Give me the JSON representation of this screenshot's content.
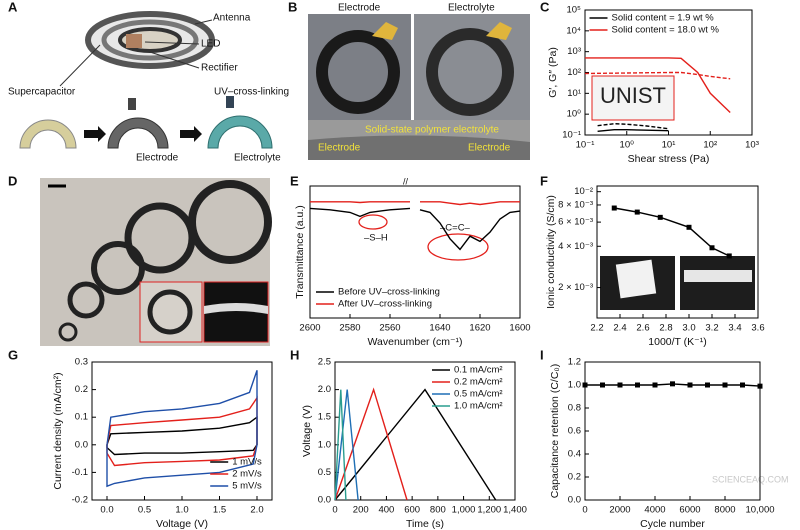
{
  "panel_labels": [
    "A",
    "B",
    "C",
    "D",
    "E",
    "F",
    "G",
    "H",
    "I"
  ],
  "panel_a": {
    "labels": [
      "Antenna",
      "LED",
      "Rectifier",
      "Supercapacitor",
      "UV–cross-linking",
      "Electrode",
      "Electrolyte"
    ]
  },
  "panel_b": {
    "labels": [
      "Electrode",
      "Electrolyte",
      "Solid-state polymer electrolyte",
      "Electrode",
      "Electrode"
    ]
  },
  "watermark": "SCIENCEAQ.COM",
  "chart_data": [
    {
      "type": "line",
      "xlabel": "Shear stress (Pa)",
      "ylabel": "G′, G″ (Pa)",
      "xscale": "log",
      "yscale": "log",
      "xlim": [
        0.1,
        1000
      ],
      "xticks": [
        {
          "value": 0.1,
          "label": "10⁻¹"
        },
        {
          "value": 1,
          "label": "10⁰"
        },
        {
          "value": 10,
          "label": "10¹"
        },
        {
          "value": 100,
          "label": "10²"
        },
        {
          "value": 1000,
          "label": "10³"
        }
      ],
      "ylim": [
        0.1,
        100000
      ],
      "yticks": [
        {
          "value": 0.1,
          "label": "10⁻¹"
        },
        {
          "value": 1,
          "label": "10⁰"
        },
        {
          "value": 10,
          "label": "10¹"
        },
        {
          "value": 100,
          "label": "10²"
        },
        {
          "value": 1000,
          "label": "10³"
        },
        {
          "value": 10000,
          "label": "10⁴"
        },
        {
          "value": 100000,
          "label": "10⁵"
        }
      ],
      "legend": "upper right",
      "inset_text": "UNIST",
      "series": [
        {
          "name": "Solid content = 1.9 wt %",
          "color": "#000000",
          "x": [
            0.2,
            0.5,
            1,
            3,
            10
          ],
          "values": [
            0.15,
            0.18,
            0.18,
            0.17,
            0.16
          ],
          "loss": [
            0.28,
            0.35,
            0.33,
            0.27,
            0.2
          ]
        },
        {
          "name": "Solid content = 18.0 wt %",
          "color": "#e3201b",
          "x": [
            0.1,
            1,
            10,
            20,
            50,
            100,
            300
          ],
          "values": [
            500,
            500,
            500,
            480,
            100,
            10,
            1.2
          ],
          "loss": [
            90,
            95,
            100,
            100,
            80,
            65,
            50
          ]
        }
      ]
    },
    {
      "type": "line",
      "xlabel": "Wavenumber (cm⁻¹)",
      "ylabel": "Transmittance (a.u.)",
      "ylim": [
        0,
        1
      ],
      "segments": [
        {
          "xlim": [
            2600,
            2550
          ],
          "xticks": [
            2600,
            2580,
            2560
          ]
        },
        {
          "xlim": [
            1650,
            1600
          ],
          "xticks": [
            1640,
            1620,
            1600
          ]
        }
      ],
      "annotations": [
        "–S–H",
        "–C=C–"
      ],
      "legend": "lower left",
      "series": [
        {
          "name": "Before UV–cross-linking",
          "color": "#000000",
          "segments": [
            {
              "x": [
                2600,
                2590,
                2580,
                2575,
                2570,
                2560,
                2550
              ],
              "values": [
                0.83,
                0.82,
                0.8,
                0.77,
                0.8,
                0.82,
                0.83
              ]
            },
            {
              "x": [
                1650,
                1645,
                1640,
                1635,
                1630,
                1625,
                1620,
                1615,
                1610,
                1605,
                1600
              ],
              "values": [
                0.82,
                0.8,
                0.72,
                0.6,
                0.52,
                0.62,
                0.58,
                0.65,
                0.75,
                0.8,
                0.81
              ]
            }
          ]
        },
        {
          "name": "After UV–cross-linking",
          "color": "#e3201b",
          "segments": [
            {
              "x": [
                2600,
                2590,
                2580,
                2575,
                2570,
                2560,
                2550
              ],
              "values": [
                0.88,
                0.88,
                0.88,
                0.875,
                0.88,
                0.88,
                0.88
              ]
            },
            {
              "x": [
                1650,
                1645,
                1640,
                1635,
                1630,
                1625,
                1620,
                1615,
                1610,
                1605,
                1600
              ],
              "values": [
                0.88,
                0.88,
                0.88,
                0.87,
                0.86,
                0.87,
                0.86,
                0.87,
                0.88,
                0.88,
                0.88
              ]
            }
          ]
        }
      ]
    },
    {
      "type": "line",
      "markers": true,
      "xlabel": "1000/T (K⁻¹)",
      "ylabel": "Ionic conductivity (S/cm)",
      "yscale": "log",
      "xlim": [
        2.2,
        3.6
      ],
      "xticks": [
        2.2,
        2.4,
        2.6,
        2.8,
        {
          "value": 3,
          "label": "3.0"
        },
        3.2,
        3.4,
        3.6
      ],
      "ylim": [
        0.0012,
        0.011
      ],
      "yticks": [
        {
          "value": 0.002,
          "label": "2 × 10⁻³"
        },
        {
          "value": 0.004,
          "label": "4 × 10⁻³"
        },
        {
          "value": 0.006,
          "label": "6 × 10⁻³"
        },
        {
          "value": 0.008,
          "label": "8 × 10⁻³"
        },
        {
          "value": 0.01,
          "label": "10⁻²"
        }
      ],
      "x": [
        2.35,
        2.55,
        2.75,
        3.0,
        3.2,
        3.35
      ],
      "series": [
        {
          "color": "#000000",
          "values": [
            0.0076,
            0.0071,
            0.0065,
            0.0055,
            0.0039,
            0.0034
          ]
        }
      ]
    },
    {
      "type": "line",
      "closed": true,
      "xlabel": "Voltage (V)",
      "ylabel": "Current density (mA/cm²)",
      "xlim": [
        -0.2,
        2.2
      ],
      "xticks": [
        {
          "value": 0,
          "label": "0.0"
        },
        0.5,
        {
          "value": 1,
          "label": "1.0"
        },
        1.5,
        {
          "value": 2,
          "label": "2.0"
        }
      ],
      "ylim": [
        -0.2,
        0.3
      ],
      "yticks": [
        -0.2,
        -0.1,
        {
          "value": 0,
          "label": "0.0"
        },
        0.1,
        0.2,
        0.3
      ],
      "legend": "lower right",
      "series": [
        {
          "name": "1 mV/s",
          "color": "#000000",
          "x": [
            0,
            0.05,
            0.5,
            1,
            1.5,
            1.9,
            2.0,
            2.0,
            1.95,
            1.5,
            1,
            0.5,
            0.1,
            0
          ],
          "values": [
            0,
            0.04,
            0.045,
            0.05,
            0.06,
            0.08,
            0.1,
            0,
            -0.02,
            -0.025,
            -0.03,
            -0.03,
            -0.035,
            -0.01
          ]
        },
        {
          "name": "2 mV/s",
          "color": "#e3201b",
          "x": [
            0,
            0.05,
            0.5,
            1,
            1.5,
            1.9,
            2.0,
            2.0,
            1.95,
            1.5,
            1,
            0.5,
            0.1,
            0
          ],
          "values": [
            0,
            0.07,
            0.08,
            0.09,
            0.1,
            0.13,
            0.17,
            0,
            -0.04,
            -0.055,
            -0.06,
            -0.065,
            -0.075,
            -0.03
          ]
        },
        {
          "name": "5 mV/s",
          "color": "#1f4fa8",
          "x": [
            0,
            0.05,
            0.5,
            1,
            1.5,
            1.9,
            2.0,
            2.0,
            1.95,
            1.5,
            1,
            0.5,
            0.1,
            0
          ],
          "values": [
            0,
            0.1,
            0.12,
            0.13,
            0.15,
            0.19,
            0.27,
            0,
            -0.07,
            -0.1,
            -0.11,
            -0.12,
            -0.14,
            -0.15
          ]
        }
      ]
    },
    {
      "type": "line",
      "xlabel": "Time (s)",
      "ylabel": "Voltage (V)",
      "xlim": [
        0,
        1400
      ],
      "xticks": [
        0,
        200,
        400,
        600,
        800,
        {
          "value": 1000,
          "label": "1,000"
        },
        {
          "value": 1200,
          "label": "1,200"
        },
        {
          "value": 1400,
          "label": "1,400"
        }
      ],
      "ylim": [
        0,
        2.5
      ],
      "yticks": [
        {
          "value": 0,
          "label": "0.0"
        },
        0.5,
        {
          "value": 1,
          "label": "1.0"
        },
        1.5,
        {
          "value": 2,
          "label": "2.0"
        },
        2.5
      ],
      "legend": "upper right",
      "series": [
        {
          "name": "0.1 mA/cm²",
          "color": "#000000",
          "x": [
            0,
            700,
            1250
          ],
          "values": [
            0,
            2.0,
            0
          ]
        },
        {
          "name": "0.2 mA/cm²",
          "color": "#e3201b",
          "x": [
            0,
            300,
            560
          ],
          "values": [
            0,
            2.0,
            0
          ]
        },
        {
          "name": "0.5 mA/cm²",
          "color": "#1f6fb5",
          "x": [
            0,
            95,
            180
          ],
          "values": [
            0,
            2.0,
            0
          ]
        },
        {
          "name": "1.0 mA/cm²",
          "color": "#2a9d8f",
          "x": [
            0,
            45,
            85
          ],
          "values": [
            0,
            2.0,
            0
          ]
        }
      ]
    },
    {
      "type": "line",
      "markers": true,
      "xlabel": "Cycle number",
      "ylabel": "Capacitance retention (C/C₀)",
      "xlim": [
        0,
        10000
      ],
      "xticks": [
        0,
        2000,
        4000,
        6000,
        8000,
        {
          "value": 10000,
          "label": "10,000"
        }
      ],
      "ylim": [
        0,
        1.2
      ],
      "yticks": [
        {
          "value": 0,
          "label": "0.0"
        },
        0.2,
        0.4,
        0.6,
        0.8,
        {
          "value": 1,
          "label": "1.0"
        },
        1.2
      ],
      "x": [
        0,
        1000,
        2000,
        3000,
        4000,
        5000,
        6000,
        7000,
        8000,
        9000,
        10000
      ],
      "series": [
        {
          "color": "#000000",
          "values": [
            1.0,
            1.0,
            1.0,
            1.0,
            1.0,
            1.01,
            1.0,
            1.0,
            1.0,
            1.0,
            0.99
          ]
        }
      ]
    }
  ]
}
